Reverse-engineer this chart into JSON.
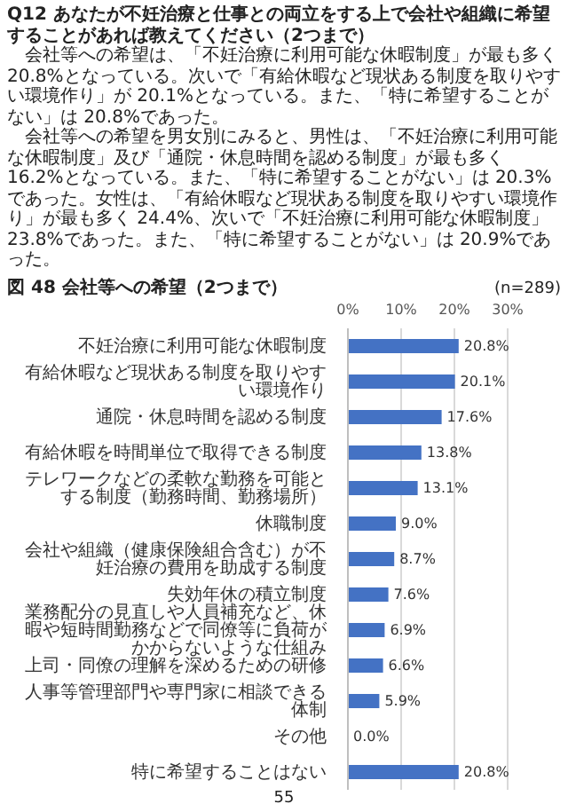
{
  "chart_data": {
    "type": "bar",
    "orientation": "horizontal",
    "title": "図 48 会社等への希望（2つまで）",
    "subtitle": "(n=289)",
    "annotations": [
      "Q12 あなたが不妊治療と仕事との両立をする上で会社や組織に希望することがあれば教えてください（2つまで）",
      "会社等への希望は、「不妊治療に利用可能な休暇制度」が最も多く 20.8%となっている。次いで「有給休暇など現状ある制度を取りやすい環境作り」が 20.1%となっている。また、「特に希望することがない」は 20.8%であった。",
      "会社等への希望を男女別にみると、男性は、「不妊治療に利用可能な休暇制度」及び「通院・休息時間を認める制度」が最も多く 16.2%となっている。また、「特に希望することがない」は 20.3%であった。女性は、「有給休暇など現状ある制度を取りやすい環境作り」が最も多く 24.4%、次いで「不妊治療に利用可能な休暇制度」23.8%であった。また、「特に希望することがない」は 20.9%であった。",
      "55"
    ],
    "categories": [
      "不妊治療に利用可能な休暇制度",
      "有給休暇など現状ある制度を取りやすい環境作り",
      "通院・休息時間を認める制度",
      "有給休暇を時間単位で取得できる制度",
      "テレワークなどの柔軟な勤務を可能とする制度（勤務時間、勤務場所）",
      "休職制度",
      "会社や組織（健康保険組合含む）が不妊治療の費用を助成する制度",
      "失効年休の積立制度",
      "業務配分の見直しや人員補充など、休暇や短時間勤務などで同僚等に負荷がかからないような仕組み",
      "上司・同僚の理解を深めるための研修",
      "人事等管理部門や専門家に相談できる体制",
      "その他",
      "特に希望することはない"
    ],
    "values": [
      20.8,
      20.1,
      17.6,
      13.8,
      13.1,
      9.0,
      8.7,
      7.6,
      6.9,
      6.6,
      5.9,
      0.0,
      20.8
    ],
    "value_labels": [
      "20.8%",
      "20.1%",
      "17.6%",
      "13.8%",
      "13.1%",
      "9.0%",
      "8.7%",
      "7.6%",
      "6.9%",
      "6.6%",
      "5.9%",
      "0.0%",
      "20.8%"
    ],
    "color": "#4472c4",
    "xlim": [
      0,
      30
    ],
    "xticks": [
      {
        "value": 0,
        "label": "0%"
      },
      {
        "value": 10,
        "label": "10%"
      },
      {
        "value": 20,
        "label": "20%"
      },
      {
        "value": 30,
        "label": "30%"
      }
    ],
    "grid": "x"
  }
}
